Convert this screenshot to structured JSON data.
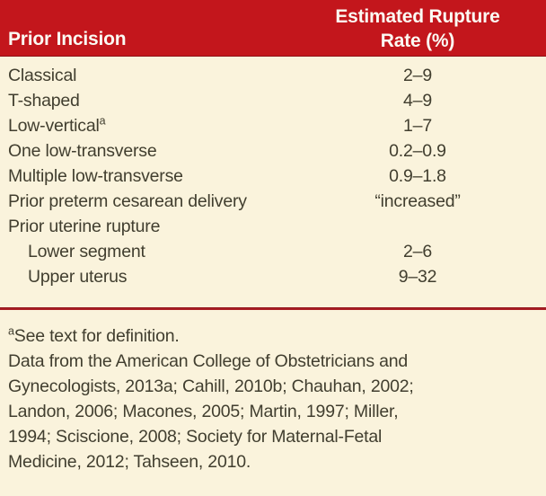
{
  "colors": {
    "header_bg": "#C3161C",
    "header_text": "#FBFAF3",
    "body_bg": "#FAF3DC",
    "divider": "#A91E24",
    "text": "#413E2F"
  },
  "table": {
    "header": {
      "col1": "Prior Incision",
      "col2_line1": "Estimated Rupture",
      "col2_line2": "Rate (%)"
    },
    "rows": [
      {
        "label": "Classical",
        "sup": "",
        "value": "2–9",
        "indent": false
      },
      {
        "label": "T-shaped",
        "sup": "",
        "value": "4–9",
        "indent": false
      },
      {
        "label": "Low-vertical",
        "sup": "a",
        "value": "1–7",
        "indent": false
      },
      {
        "label": "One low-transverse",
        "sup": "",
        "value": "0.2–0.9",
        "indent": false
      },
      {
        "label": "Multiple low-transverse",
        "sup": "",
        "value": "0.9–1.8",
        "indent": false
      },
      {
        "label": "Prior preterm cesarean delivery",
        "sup": "",
        "value": "“increased”",
        "indent": false
      },
      {
        "label": "Prior uterine rupture",
        "sup": "",
        "value": "",
        "indent": false
      },
      {
        "label": "Lower segment",
        "sup": "",
        "value": "2–6",
        "indent": true
      },
      {
        "label": "Upper uterus",
        "sup": "",
        "value": "9–32",
        "indent": true
      }
    ]
  },
  "footnotes": {
    "definition_sup": "a",
    "definition": "See text for definition.",
    "source_full": "Data from the American College of Obstetricians and Gynecologists, 2013a; Cahill, 2010b; Chauhan, 2002; Landon, 2006; Macones, 2005; Martin, 1997; Miller, 1994; Sciscione, 2008; Society for Maternal-Fetal Medicine, 2012; Tahseen, 2010.",
    "source_lines": [
      "Data from the American College of Obstetricians and",
      "Gynecologists, 2013a; Cahill, 2010b; Chauhan, 2002;",
      "Landon, 2006; Macones, 2005; Martin, 1997; Miller,",
      "1994; Sciscione, 2008; Society for Maternal-Fetal",
      "Medicine, 2012; Tahseen, 2010."
    ]
  }
}
